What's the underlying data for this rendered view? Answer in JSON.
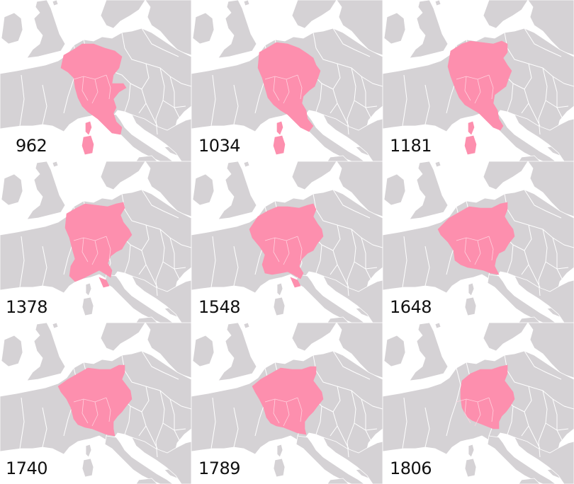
{
  "map": {
    "panels": [
      {
        "year": "962",
        "extent": "e962"
      },
      {
        "year": "1034",
        "extent": "e1034"
      },
      {
        "year": "1181",
        "extent": "e1181"
      },
      {
        "year": "1378",
        "extent": "e1378"
      },
      {
        "year": "1548",
        "extent": "e1548"
      },
      {
        "year": "1648",
        "extent": "e1648"
      },
      {
        "year": "1740",
        "extent": "e1740"
      },
      {
        "year": "1789",
        "extent": "e1789"
      },
      {
        "year": "1806",
        "extent": "e1806"
      }
    ],
    "colors": {
      "sea": "#ffffff",
      "land": "#d5d2d5",
      "border": "#ffffff",
      "highlight": "#fd8fae",
      "label": "#111111"
    }
  }
}
